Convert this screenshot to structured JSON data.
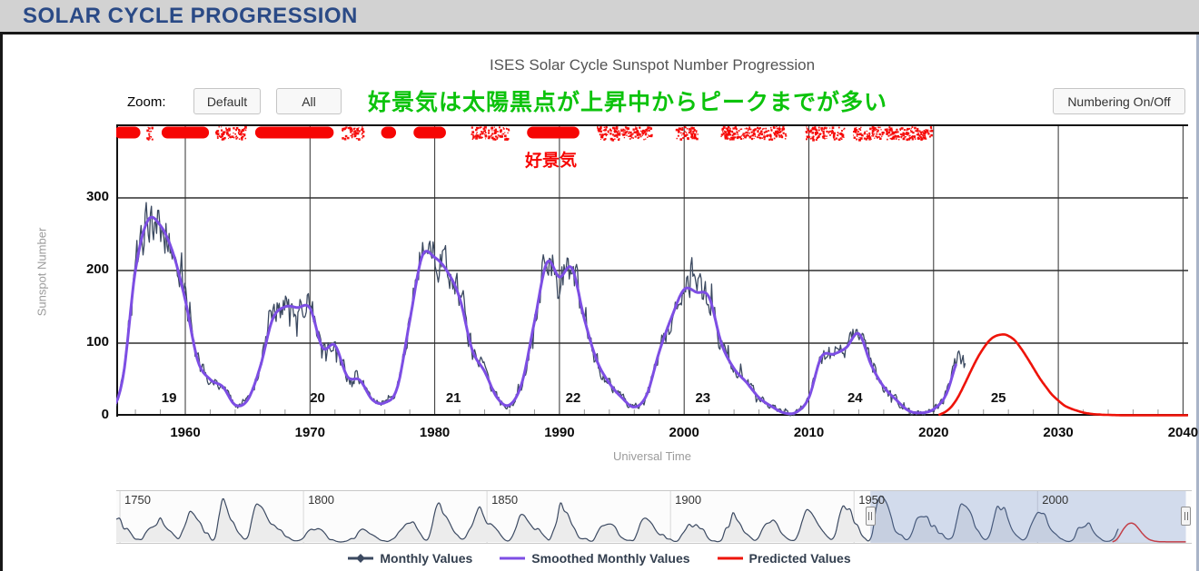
{
  "header": {
    "title": "SOLAR CYCLE PROGRESSION"
  },
  "toolbar": {
    "zoom_label": "Zoom:",
    "default_button": "Default",
    "all_button": "All",
    "numbering_button": "Numbering On/Off"
  },
  "annotations": {
    "green_note": "好景気は太陽黒点が上昇中からピークまでが多い",
    "green_color": "#0cc30c",
    "red_note": "好景気",
    "red_color": "#f60604"
  },
  "chart_data": {
    "type": "line",
    "title": "ISES Solar Cycle Sunspot Number Progression",
    "xlabel": "Universal Time",
    "ylabel": "Sunspot Number",
    "xlim": [
      1954.45,
      2040.4
    ],
    "ylim": [
      0,
      401
    ],
    "x_ticks": [
      1960,
      1970,
      1980,
      1990,
      2000,
      2010,
      2020,
      2030,
      2040
    ],
    "y_ticks": [
      0,
      100,
      200,
      300
    ],
    "grid": true,
    "legend_position": "bottom",
    "annual_smoothed": {
      "start_year": 1749,
      "values": [
        135,
        139,
        80,
        80,
        51,
        20,
        16,
        17,
        54,
        80,
        90,
        104,
        143,
        102,
        75,
        60,
        35,
        20,
        63,
        116,
        180,
        168,
        136,
        110,
        58,
        51,
        12,
        33,
        154,
        257,
        210,
        141,
        113,
        64,
        38,
        17,
        40,
        139,
        220,
        218,
        196,
        151,
        111,
        100,
        78,
        68,
        36,
        26,
        11,
        7,
        11,
        25,
        57,
        75,
        72,
        79,
        70,
        47,
        17,
        13,
        4,
        0,
        2,
        8,
        20,
        23,
        59,
        76,
        68,
        51,
        40,
        26,
        11,
        7,
        3,
        14,
        28,
        60,
        82,
        107,
        112,
        118,
        78,
        45,
        14,
        21,
        94,
        196,
        232,
        172,
        147,
        106,
        62,
        40,
        18,
        25,
        66,
        103,
        165,
        209,
        159,
        111,
        108,
        90,
        65,
        34,
        11,
        8,
        38,
        92,
        157,
        160,
        129,
        100,
        74,
        79,
        50,
        27,
        13,
        63,
        124,
        232,
        186,
        168,
        110,
        74,
        28,
        19,
        20,
        6,
        10,
        53,
        90,
        99,
        106,
        105,
        86,
        42,
        22,
        11,
        10,
        12,
        59,
        121,
        142,
        130,
        106,
        69,
        44,
        44,
        20,
        16,
        4,
        8,
        41,
        70,
        105,
        90,
        103,
        81,
        73,
        31,
        9,
        6,
        2,
        16,
        79,
        95,
        174,
        135,
        106,
        62,
        44,
        24,
        9,
        28,
        75,
        107,
        115,
        130,
        107,
        60,
        36,
        18,
        9,
        15,
        60,
        133,
        190,
        182,
        152,
        113,
        79,
        51,
        27,
        16,
        55,
        154,
        214,
        193,
        193,
        119,
        98,
        45,
        21,
        7,
        53,
        200,
        269,
        262,
        225,
        159,
        76,
        50,
        40,
        15,
        22,
        67,
        133,
        150,
        149,
        148,
        94,
        97,
        54,
        49,
        22,
        18,
        39,
        131,
        220,
        218,
        199,
        162,
        91,
        61,
        25,
        15,
        46,
        130,
        211,
        191,
        203,
        133,
        76,
        45,
        25,
        12,
        29,
        88,
        136,
        174,
        170,
        163,
        99,
        65,
        46,
        25,
        13,
        4,
        5,
        25,
        81,
        85,
        94,
        113,
        70,
        40,
        22,
        7,
        4,
        9,
        29,
        78
      ]
    },
    "series": [
      {
        "name": "Monthly Values",
        "color": "#3b4960",
        "derived_from": "annual_smoothed",
        "range": [
          1954.45,
          2022.6
        ],
        "noise": {
          "seed": 42,
          "rel": 0.17,
          "abs": 4.5,
          "spike_prob": 0.1,
          "spike_mult": 2.1
        }
      },
      {
        "name": "Smoothed Monthly Values",
        "color": "#7d4ee4",
        "derived_from": "annual_smoothed",
        "range": [
          1954.45,
          2021.85
        ]
      },
      {
        "name": "Predicted Values",
        "color": "#ee1309",
        "points": [
          [
            2020.4,
            1
          ],
          [
            2021,
            6
          ],
          [
            2021.5,
            14
          ],
          [
            2022,
            27
          ],
          [
            2022.5,
            44
          ],
          [
            2023,
            62
          ],
          [
            2023.5,
            79
          ],
          [
            2024,
            93
          ],
          [
            2024.5,
            104
          ],
          [
            2025,
            110
          ],
          [
            2025.6,
            112
          ],
          [
            2026,
            110
          ],
          [
            2026.5,
            104
          ],
          [
            2027,
            93
          ],
          [
            2027.5,
            80
          ],
          [
            2028,
            66
          ],
          [
            2028.5,
            52
          ],
          [
            2029,
            40
          ],
          [
            2029.5,
            29
          ],
          [
            2030,
            21
          ],
          [
            2030.5,
            14
          ],
          [
            2031,
            10
          ],
          [
            2031.5,
            7
          ],
          [
            2032,
            4.5
          ],
          [
            2032.5,
            3
          ],
          [
            2033,
            2
          ],
          [
            2034,
            1.2
          ],
          [
            2035,
            0.8
          ],
          [
            2036,
            0.7
          ],
          [
            2038,
            0.7
          ],
          [
            2040.4,
            0.7
          ]
        ]
      }
    ],
    "cycle_labels": [
      {
        "label": "19",
        "year": 1958.7,
        "value": 25
      },
      {
        "label": "20",
        "year": 1970.6,
        "value": 25
      },
      {
        "label": "21",
        "year": 1981.5,
        "value": 25
      },
      {
        "label": "22",
        "year": 1991.1,
        "value": 25
      },
      {
        "label": "23",
        "year": 2001.5,
        "value": 25
      },
      {
        "label": "24",
        "year": 2013.7,
        "value": 25
      },
      {
        "label": "25",
        "year": 2025.2,
        "value": 25
      }
    ],
    "economy_marks": [
      [
        1954.3,
        1956.4,
        "solid"
      ],
      [
        1956.8,
        1957.3,
        "speckle"
      ],
      [
        1958.1,
        1961.9,
        "solid"
      ],
      [
        1962.4,
        1964.8,
        "speckle"
      ],
      [
        1965.6,
        1971.9,
        "solid"
      ],
      [
        1972.5,
        1974.2,
        "speckle"
      ],
      [
        1975.7,
        1976.9,
        "solid"
      ],
      [
        1978.3,
        1980.9,
        "solid"
      ],
      [
        1982.9,
        1985.9,
        "speckle"
      ],
      [
        1987.4,
        1991.6,
        "solid"
      ],
      [
        1993.0,
        1997.4,
        "speckle"
      ],
      [
        1999.3,
        2001.1,
        "speckle"
      ],
      [
        2002.8,
        2008.1,
        "speckle"
      ],
      [
        2009.7,
        2012.8,
        "speckle"
      ],
      [
        2013.5,
        2019.8,
        "speckle"
      ]
    ]
  },
  "navigator": {
    "xlim": [
      1749,
      2042
    ],
    "tick_years": [
      1750,
      1800,
      1850,
      1900,
      1950,
      2000
    ],
    "selection": [
      1954.45,
      2040.4
    ],
    "selection_color": "rgba(102,133,194,0.28)",
    "line_color": "#3c4a62",
    "fill_color": "#ececec",
    "predicted_color": "#e8241a"
  },
  "legend": {
    "items": [
      {
        "label": "Monthly Values",
        "color": "#3b4960",
        "marker": "line-diamond"
      },
      {
        "label": "Smoothed Monthly Values",
        "color": "#7d4ee4",
        "marker": "line"
      },
      {
        "label": "Predicted Values",
        "color": "#ee1309",
        "marker": "line"
      }
    ]
  }
}
